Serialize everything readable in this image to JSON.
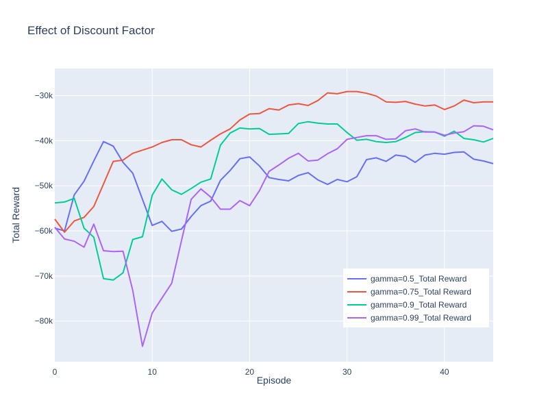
{
  "chart_data": {
    "type": "line",
    "title": "Effect of Discount Factor",
    "xlabel": "Episode",
    "ylabel": "Total Reward",
    "xlim": [
      0,
      45
    ],
    "ylim": [
      -89000,
      -24000
    ],
    "x_ticks": [
      0,
      10,
      20,
      30,
      40
    ],
    "y_ticks": [
      -30000,
      -40000,
      -50000,
      -60000,
      -70000,
      -80000
    ],
    "y_tick_labels": [
      "−30k",
      "−40k",
      "−50k",
      "−60k",
      "−70k",
      "−80k"
    ],
    "grid": true,
    "legend_position": "bottom-right",
    "x": [
      0,
      1,
      2,
      3,
      4,
      5,
      6,
      7,
      8,
      9,
      10,
      11,
      12,
      13,
      14,
      15,
      16,
      17,
      18,
      19,
      20,
      21,
      22,
      23,
      24,
      25,
      26,
      27,
      28,
      29,
      30,
      31,
      32,
      33,
      34,
      35,
      36,
      37,
      38,
      39,
      40,
      41,
      42,
      43,
      44,
      45
    ],
    "series": [
      {
        "name": "gamma=0.5_Total Reward",
        "color": "#636efa",
        "values": [
          -59400,
          -60000,
          -52000,
          -49000,
          -44500,
          -40200,
          -41200,
          -44800,
          -47200,
          -53000,
          -58800,
          -57900,
          -60100,
          -59600,
          -56800,
          -54400,
          -53400,
          -48800,
          -46600,
          -44000,
          -43600,
          -45600,
          -48200,
          -48600,
          -48900,
          -47700,
          -47100,
          -48700,
          -49700,
          -48600,
          -49100,
          -48000,
          -44200,
          -43800,
          -44600,
          -43200,
          -43500,
          -44800,
          -43200,
          -42800,
          -43000,
          -42600,
          -42500,
          -44100,
          -44500,
          -45100
        ]
      },
      {
        "name": "gamma=0.75_Total Reward",
        "color": "#ef553b",
        "values": [
          -57400,
          -60300,
          -57800,
          -57000,
          -54600,
          -49600,
          -44600,
          -44300,
          -42800,
          -42100,
          -41400,
          -40400,
          -39800,
          -39800,
          -40900,
          -41400,
          -39900,
          -38500,
          -37400,
          -35400,
          -34100,
          -34000,
          -32900,
          -33200,
          -32100,
          -31800,
          -32200,
          -31100,
          -29400,
          -29600,
          -29100,
          -29100,
          -29500,
          -30100,
          -31400,
          -31500,
          -31300,
          -31900,
          -32300,
          -32100,
          -33100,
          -32300,
          -31000,
          -31600,
          -31400,
          -31400
        ]
      },
      {
        "name": "gamma=0.9_Total Reward",
        "color": "#00cc96",
        "values": [
          -53800,
          -53600,
          -52800,
          -59400,
          -61400,
          -70600,
          -70900,
          -69300,
          -61900,
          -61300,
          -52100,
          -48500,
          -50900,
          -51900,
          -50600,
          -49200,
          -48500,
          -41000,
          -38300,
          -37200,
          -37400,
          -37300,
          -38600,
          -38500,
          -38400,
          -36200,
          -35800,
          -36100,
          -36300,
          -36300,
          -38200,
          -39900,
          -39700,
          -40200,
          -40400,
          -40200,
          -39300,
          -38200,
          -38000,
          -38100,
          -39000,
          -37900,
          -39500,
          -39800,
          -40300,
          -39500
        ]
      },
      {
        "name": "gamma=0.99_Total Reward",
        "color": "#ab63fa",
        "values": [
          -59200,
          -61800,
          -62300,
          -63600,
          -58500,
          -64400,
          -64600,
          -64500,
          -73200,
          -85600,
          -78200,
          -74900,
          -71600,
          -62200,
          -53000,
          -50700,
          -52500,
          -55200,
          -55200,
          -53300,
          -54400,
          -51100,
          -46800,
          -45400,
          -43900,
          -42800,
          -44500,
          -44300,
          -42900,
          -41800,
          -39700,
          -39300,
          -38900,
          -38900,
          -39700,
          -39600,
          -37800,
          -37400,
          -38100,
          -38100,
          -38800,
          -38300,
          -38000,
          -36700,
          -36800,
          -37600
        ]
      }
    ]
  }
}
